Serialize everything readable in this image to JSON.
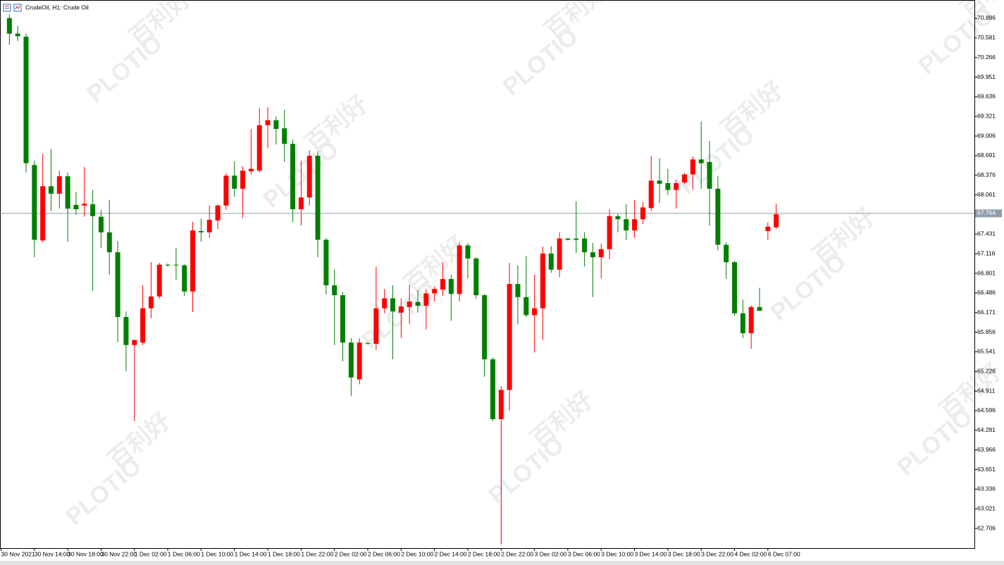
{
  "chart_data": {
    "type": "candlestick",
    "title": "CrudeOil, H1:  Crude Oil",
    "categories": [
      "30 Nov 2021",
      null,
      null,
      null,
      "30 Nov 14:00",
      null,
      null,
      null,
      "30 Nov 18:00",
      null,
      null,
      null,
      "30 Nov 22:00",
      null,
      null,
      null,
      "1 Dec 02:00",
      null,
      null,
      null,
      "1 Dec 06:00",
      null,
      null,
      null,
      "1 Dec 10:00",
      null,
      null,
      null,
      "1 Dec 14:00",
      null,
      null,
      null,
      "1 Dec 18:00",
      null,
      null,
      null,
      "1 Dec 22:00",
      null,
      null,
      null,
      "2 Dec 02:00",
      null,
      null,
      null,
      "2 Dec 06:00",
      null,
      null,
      null,
      "2 Dec 10:00",
      null,
      null,
      null,
      "2 Dec 14:00",
      null,
      null,
      null,
      "2 Dec 18:00",
      null,
      null,
      null,
      "2 Dec 22:00",
      null,
      null,
      null,
      "3 Dec 02:00",
      null,
      null,
      null,
      "3 Dec 06:00",
      null,
      null,
      null,
      "3 Dec 10:00",
      null,
      null,
      null,
      "3 Dec 14:00",
      null,
      null,
      null,
      "3 Dec 18:00",
      null,
      null,
      null,
      "3 Dec 22:00",
      null,
      null,
      null,
      "4 Dec 02:00",
      null,
      null,
      null,
      "6 Dec 07:00",
      null
    ],
    "open": [
      null,
      70.9,
      70.65,
      70.6,
      68.54,
      67.33,
      68.2,
      68.08,
      68.36,
      67.9,
      67.89,
      67.91,
      67.71,
      67.46,
      67.14,
      66.1,
      65.65,
      65.69,
      66.24,
      66.43,
      66.94,
      66.94,
      66.93,
      66.51,
      67.48,
      67.46,
      67.65,
      67.89,
      68.37,
      68.16,
      68.44,
      68.45,
      69.18,
      69.26,
      69.13,
      68.88,
      67.83,
      68.02,
      68.69,
      67.34,
      66.61,
      66.45,
      65.69,
      65.1,
      65.68,
      65.67,
      66.24,
      66.4,
      66.17,
      66.26,
      66.34,
      66.28,
      66.48,
      66.54,
      66.71,
      66.47,
      67.25,
      67.04,
      66.45,
      65.42,
      64.46,
      64.93,
      66.63,
      66.42,
      66.13,
      66.24,
      67.12,
      66.86,
      67.36,
      67.36,
      67.36,
      67.14,
      67.06,
      67.19,
      67.72,
      67.67,
      67.49,
      67.67,
      67.85,
      68.29,
      68.25,
      68.14,
      68.26,
      68.39,
      68.63,
      68.59,
      68.16,
      67.26,
      66.98,
      66.16,
      65.84,
      66.26,
      67.48,
      67.54
    ],
    "high": [
      null,
      70.96,
      70.77,
      70.65,
      68.61,
      68.72,
      68.8,
      68.45,
      68.42,
      68.11,
      68.51,
      68.14,
      67.82,
      67.98,
      67.32,
      66.19,
      65.74,
      66.61,
      66.98,
      66.97,
      66.96,
      67.21,
      66.95,
      67.63,
      67.68,
      67.89,
      67.91,
      68.41,
      68.6,
      68.52,
      69.12,
      69.46,
      69.47,
      69.32,
      69.43,
      68.95,
      68.61,
      68.78,
      68.76,
      67.37,
      66.86,
      66.5,
      65.76,
      65.76,
      65.7,
      66.91,
      66.55,
      66.61,
      66.4,
      66.62,
      66.53,
      66.55,
      66.59,
      66.98,
      66.78,
      67.29,
      67.29,
      67.06,
      66.47,
      65.45,
      64.99,
      66.97,
      66.93,
      67.08,
      66.78,
      67.23,
      67.24,
      67.46,
      67.37,
      67.96,
      67.46,
      67.29,
      67.28,
      67.83,
      67.76,
      67.91,
      67.98,
      67.95,
      68.69,
      68.65,
      68.48,
      68.31,
      68.41,
      68.68,
      69.24,
      68.93,
      68.36,
      67.3,
      67.0,
      66.38,
      66.29,
      66.57,
      67.62,
      67.92
    ],
    "low": [
      null,
      70.47,
      70.53,
      68.42,
      67.06,
      67.3,
      67.8,
      67.84,
      67.31,
      67.74,
      67.71,
      66.52,
      67.21,
      66.78,
      65.7,
      65.23,
      64.43,
      65.65,
      66.08,
      66.39,
      66.91,
      66.7,
      66.44,
      66.18,
      67.31,
      67.37,
      67.51,
      67.82,
      68.03,
      67.69,
      68.39,
      68.42,
      68.81,
      68.87,
      68.59,
      67.62,
      67.57,
      67.89,
      67.06,
      66.46,
      65.65,
      65.39,
      64.83,
      65.02,
      65.66,
      65.57,
      66.16,
      65.42,
      65.76,
      65.99,
      66.17,
      65.9,
      66.35,
      66.44,
      66.04,
      66.35,
      66.72,
      66.39,
      65.14,
      64.43,
      62.45,
      64.6,
      65.98,
      66.1,
      65.53,
      65.73,
      66.81,
      66.74,
      67.33,
      67.13,
      66.91,
      66.42,
      66.72,
      67.03,
      67.46,
      67.34,
      67.37,
      67.59,
      67.8,
      67.93,
      68.06,
      67.84,
      68.23,
      68.14,
      68.16,
      67.57,
      67.17,
      66.71,
      66.12,
      65.76,
      65.59,
      66.2,
      67.34,
      67.51
    ],
    "close": [
      null,
      70.65,
      70.61,
      68.57,
      67.34,
      68.2,
      68.08,
      68.36,
      67.84,
      67.83,
      67.92,
      67.72,
      67.46,
      67.14,
      66.1,
      65.65,
      65.73,
      66.24,
      66.43,
      66.94,
      66.93,
      66.93,
      66.51,
      67.49,
      67.46,
      67.66,
      67.89,
      68.37,
      68.16,
      68.45,
      68.48,
      69.18,
      69.26,
      69.12,
      68.88,
      67.83,
      68.02,
      68.69,
      67.34,
      66.61,
      66.45,
      65.69,
      65.13,
      65.69,
      65.67,
      66.24,
      66.4,
      66.19,
      66.27,
      66.35,
      66.28,
      66.48,
      66.55,
      66.71,
      66.47,
      67.25,
      67.04,
      66.45,
      65.42,
      64.46,
      64.93,
      66.63,
      66.42,
      66.13,
      66.24,
      67.12,
      66.86,
      67.36,
      67.34,
      67.34,
      67.14,
      67.06,
      67.19,
      67.72,
      67.67,
      67.49,
      67.67,
      67.86,
      68.29,
      68.24,
      68.14,
      68.25,
      68.39,
      68.63,
      68.57,
      68.16,
      67.26,
      66.98,
      66.16,
      65.84,
      66.26,
      66.2,
      67.55,
      67.75
    ],
    "up_color": "#ff0000",
    "down_color": "#007f00",
    "ylim": [
      62.39,
      71.19
    ],
    "yticks": [
      70.896,
      70.581,
      70.266,
      69.951,
      69.636,
      69.321,
      69.006,
      68.691,
      68.376,
      68.061,
      67.431,
      67.116,
      66.801,
      66.486,
      66.171,
      65.856,
      65.541,
      65.226,
      64.911,
      64.596,
      64.281,
      63.966,
      63.651,
      63.336,
      63.021,
      62.706
    ],
    "current_price": 67.764,
    "current_price_color": "#8e9cab"
  },
  "watermark": {
    "brand": "PLOTIO",
    "chinese": "百利好"
  }
}
